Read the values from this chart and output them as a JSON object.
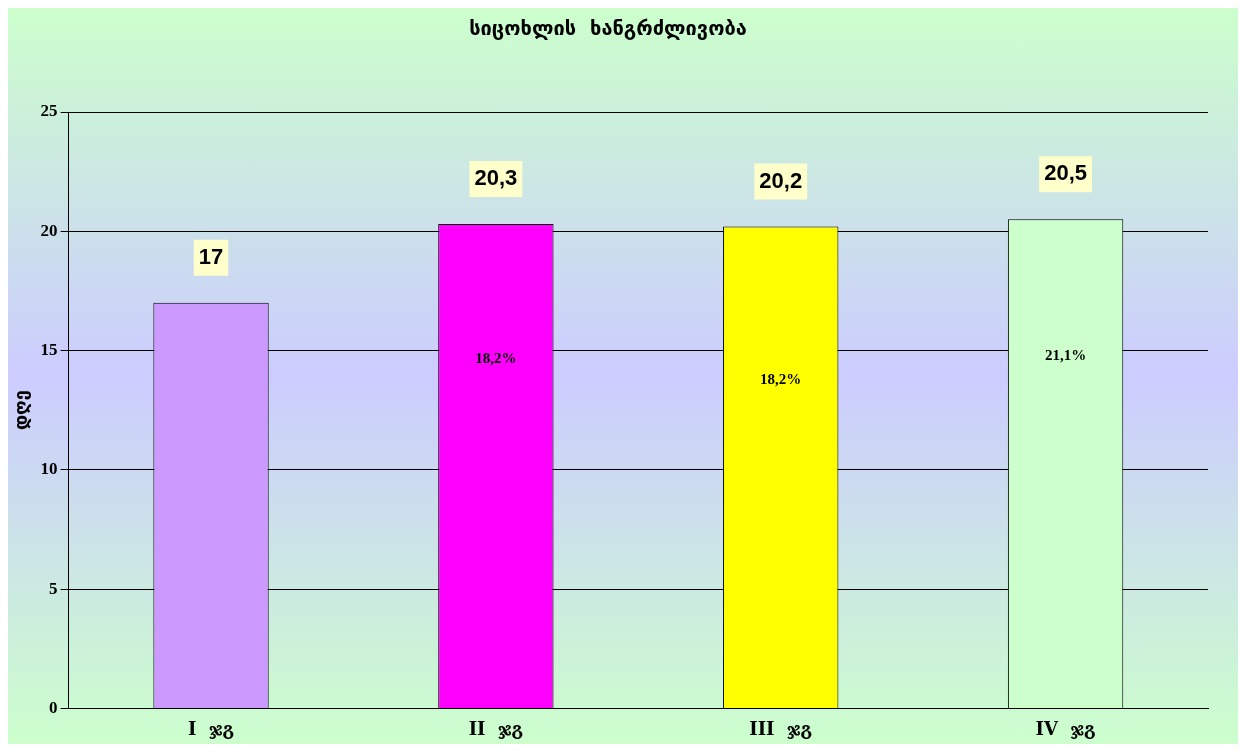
{
  "chart_data": {
    "type": "bar",
    "title": "სიცოხლის  ხანგრძლივობა",
    "ylabel": "დღე",
    "categories": [
      "I  ჯგ",
      "II  ჯგ",
      "III  ჯგ",
      "IV  ჯგ"
    ],
    "values": [
      17,
      20.3,
      20.2,
      20.5
    ],
    "colors": [
      "#cc99ff",
      "#ff00ff",
      "#ffff00",
      "#ccffcc"
    ],
    "value_labels": [
      "17",
      "20,3",
      "20,2",
      "20,5"
    ],
    "annotations": [
      "18,2%",
      "18,2%",
      "21,1%"
    ],
    "ylim": [
      0,
      25
    ],
    "yticks": [
      0,
      5,
      10,
      15,
      20,
      25
    ],
    "grid": "y"
  }
}
